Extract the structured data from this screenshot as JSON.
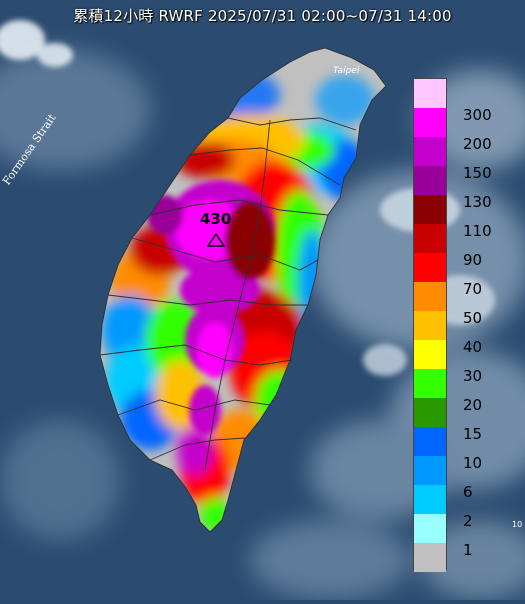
{
  "title": "累積12小時 RWRF 2025/07/31 02:00~07/31 14:00",
  "labels": {
    "strait": "Formosa Strait",
    "peak_value": "430",
    "taipei": "Taipei",
    "edge": "10"
  },
  "legend": [
    {
      "label": "300",
      "color": "#ffc6ff"
    },
    {
      "label": "200",
      "color": "#ff00ff"
    },
    {
      "label": "150",
      "color": "#c400cc"
    },
    {
      "label": "130",
      "color": "#990099"
    },
    {
      "label": "110",
      "color": "#8b0000"
    },
    {
      "label": "90",
      "color": "#c80000"
    },
    {
      "label": "70",
      "color": "#ff0000"
    },
    {
      "label": "50",
      "color": "#ff8c00"
    },
    {
      "label": "40",
      "color": "#ffc000"
    },
    {
      "label": "30",
      "color": "#ffff00"
    },
    {
      "label": "20",
      "color": "#33ff00"
    },
    {
      "label": "15",
      "color": "#2a9900"
    },
    {
      "label": "10",
      "color": "#0066ff"
    },
    {
      "label": "6",
      "color": "#0099ff"
    },
    {
      "label": "2",
      "color": "#00ccff"
    },
    {
      "label": "1",
      "color": "#99ffff"
    },
    {
      "label": "",
      "color": "#c0c0c0"
    }
  ],
  "colors": {
    "sea": "#2a4a6e",
    "cloud": "#c8d4e0",
    "county_border": "#3a3a3a"
  }
}
